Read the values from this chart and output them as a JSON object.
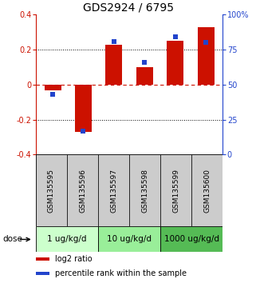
{
  "title": "GDS2924 / 6795",
  "samples": [
    "GSM135595",
    "GSM135596",
    "GSM135597",
    "GSM135598",
    "GSM135599",
    "GSM135600"
  ],
  "log2_ratio": [
    -0.03,
    -0.27,
    0.23,
    0.1,
    0.25,
    0.33
  ],
  "percentile_rank": [
    43,
    17,
    81,
    66,
    84,
    80
  ],
  "bar_color": "#cc1100",
  "dot_color": "#2244cc",
  "ylim_left": [
    -0.4,
    0.4
  ],
  "ylim_right": [
    0,
    100
  ],
  "yticks_left": [
    -0.4,
    -0.2,
    0.0,
    0.2,
    0.4
  ],
  "ytick_labels_left": [
    "-0.4",
    "-0.2",
    "0",
    "0.2",
    "0.4"
  ],
  "yticks_right": [
    0,
    25,
    50,
    75,
    100
  ],
  "ytick_labels_right": [
    "0",
    "25",
    "50",
    "75",
    "100%"
  ],
  "hlines_dotted": [
    -0.2,
    0.2
  ],
  "hline_dashed": 0.0,
  "dose_groups": [
    {
      "label": "1 ug/kg/d",
      "cols": [
        0,
        1
      ],
      "color": "#ccffcc"
    },
    {
      "label": "10 ug/kg/d",
      "cols": [
        2,
        3
      ],
      "color": "#99ee99"
    },
    {
      "label": "1000 ug/kg/d",
      "cols": [
        4,
        5
      ],
      "color": "#55bb55"
    }
  ],
  "dose_label": "dose",
  "legend_items": [
    {
      "label": "log2 ratio",
      "color": "#cc1100"
    },
    {
      "label": "percentile rank within the sample",
      "color": "#2244cc"
    }
  ],
  "bg_sample_row": "#cccccc",
  "bar_width": 0.55,
  "dot_size": 22,
  "title_fontsize": 10,
  "tick_fontsize": 7,
  "sample_fontsize": 6.5,
  "dose_fontsize": 7.5,
  "legend_fontsize": 7
}
